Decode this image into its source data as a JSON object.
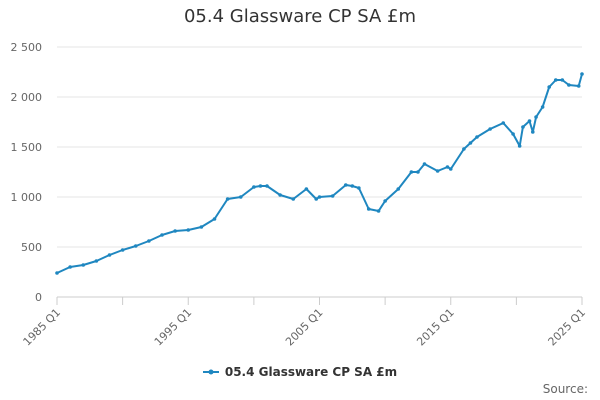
{
  "chart_data": {
    "type": "line",
    "title": "05.4 Glassware CP SA £m",
    "xlabel": "",
    "ylabel": "",
    "ylim": [
      0,
      2500
    ],
    "yticks": [
      0,
      500,
      1000,
      1500,
      2000,
      2500
    ],
    "ytick_labels": [
      "0",
      "500",
      "1 000",
      "1 500",
      "2 000",
      "2 500"
    ],
    "xticks": [
      "1985 Q1",
      "1995 Q1",
      "2005 Q1",
      "2015 Q1",
      "2025 Q1"
    ],
    "grid": true,
    "legend": "bottom-center",
    "series": [
      {
        "name": "05.4 Glassware CP SA £m",
        "color": "#1f87c0",
        "x": [
          1985.0,
          1986.0,
          1987.0,
          1988.0,
          1989.0,
          1990.0,
          1991.0,
          1992.0,
          1993.0,
          1994.0,
          1995.0,
          1996.0,
          1997.0,
          1998.0,
          1999.0,
          2000.0,
          2000.5,
          2001.0,
          2002.0,
          2003.0,
          2004.0,
          2004.75,
          2005.0,
          2006.0,
          2007.0,
          2007.5,
          2008.0,
          2008.75,
          2009.5,
          2010.0,
          2011.0,
          2012.0,
          2012.5,
          2013.0,
          2014.0,
          2014.75,
          2015.0,
          2016.0,
          2016.5,
          2017.0,
          2018.0,
          2019.0,
          2019.75,
          2020.25,
          2020.5,
          2021.0,
          2021.25,
          2021.5,
          2022.0,
          2022.5,
          2023.0,
          2023.5,
          2024.0,
          2024.75,
          2025.0
        ],
        "values": [
          240,
          300,
          320,
          360,
          420,
          470,
          510,
          560,
          620,
          660,
          670,
          700,
          780,
          980,
          1000,
          1100,
          1110,
          1110,
          1020,
          980,
          1080,
          980,
          1000,
          1010,
          1120,
          1110,
          1090,
          880,
          860,
          960,
          1080,
          1250,
          1250,
          1330,
          1260,
          1300,
          1280,
          1480,
          1540,
          1600,
          1680,
          1740,
          1630,
          1510,
          1700,
          1760,
          1650,
          1800,
          1900,
          2100,
          2170,
          2170,
          2120,
          2110,
          2230
        ]
      }
    ]
  },
  "source_label": "Source:"
}
